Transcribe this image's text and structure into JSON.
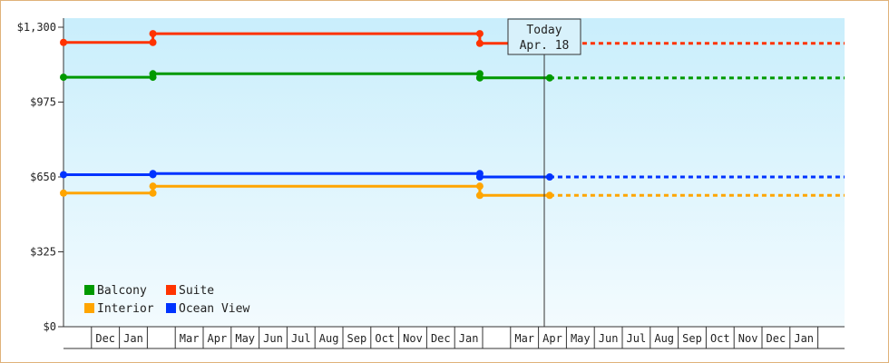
{
  "chart_data": {
    "type": "line",
    "title": "",
    "xlabel": "",
    "ylabel": "",
    "ylim": [
      0,
      1300
    ],
    "y_ticks": [
      {
        "value": 0,
        "label": "$0"
      },
      {
        "value": 325,
        "label": "$325"
      },
      {
        "value": 650,
        "label": "$650"
      },
      {
        "value": 975,
        "label": "$975"
      },
      {
        "value": 1300,
        "label": "$1,300"
      }
    ],
    "months": [
      "",
      "Dec",
      "Jan",
      "",
      "Mar",
      "Apr",
      "May",
      "Jun",
      "Jul",
      "Aug",
      "Sep",
      "Oct",
      "Nov",
      "Dec",
      "Jan",
      "",
      "Mar",
      "Apr",
      "May",
      "Jun",
      "Jul",
      "Aug",
      "Sep",
      "Oct",
      "Nov",
      "Dec",
      "Jan",
      ""
    ],
    "today": {
      "line1": "Today",
      "line2": "Apr. 18",
      "month_index": 17
    },
    "legend": {
      "placement": "bottom-left"
    },
    "grid": true,
    "series": [
      {
        "name": "Suite",
        "color": "#ff3300",
        "points": [
          [
            0,
            1234
          ],
          [
            3.2,
            1234
          ],
          [
            3.2,
            1272
          ],
          [
            14.9,
            1272
          ],
          [
            14.9,
            1230
          ],
          [
            17.4,
            1230
          ]
        ],
        "projection": 1230
      },
      {
        "name": "Balcony",
        "color": "#009900",
        "points": [
          [
            0,
            1083
          ],
          [
            3.2,
            1083
          ],
          [
            3.2,
            1098
          ],
          [
            14.9,
            1098
          ],
          [
            14.9,
            1080
          ],
          [
            17.4,
            1080
          ]
        ],
        "projection": 1080
      },
      {
        "name": "Ocean View",
        "color": "#0033ff",
        "points": [
          [
            0,
            660
          ],
          [
            3.2,
            660
          ],
          [
            3.2,
            665
          ],
          [
            14.9,
            665
          ],
          [
            14.9,
            650
          ],
          [
            17.4,
            650
          ]
        ],
        "projection": 650
      },
      {
        "name": "Interior",
        "color": "#ffa500",
        "points": [
          [
            0,
            580
          ],
          [
            3.2,
            580
          ],
          [
            3.2,
            610
          ],
          [
            14.9,
            610
          ],
          [
            14.9,
            570
          ],
          [
            17.4,
            570
          ]
        ],
        "projection": 570
      }
    ],
    "legend_order": [
      "Balcony",
      "Suite",
      "Interior",
      "Ocean View"
    ]
  }
}
